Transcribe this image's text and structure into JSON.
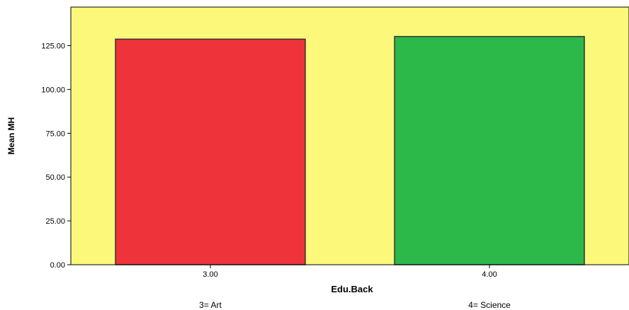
{
  "chart_data": {
    "type": "bar",
    "categories": [
      "3.00",
      "4.00"
    ],
    "values": [
      128.7,
      130.2
    ],
    "colors": [
      "#ef333a",
      "#2db84a"
    ],
    "background_color": "#fbf87a",
    "title": "",
    "xlabel": "Edu.Back",
    "ylabel": "Mean MH",
    "ylim": [
      0,
      147
    ],
    "yticks": [
      "0.00",
      "25.00",
      "50.00",
      "75.00",
      "100.00",
      "125.00"
    ],
    "category_notes": [
      "3= Art",
      "4= Science"
    ],
    "grid": false,
    "legend": "none"
  }
}
